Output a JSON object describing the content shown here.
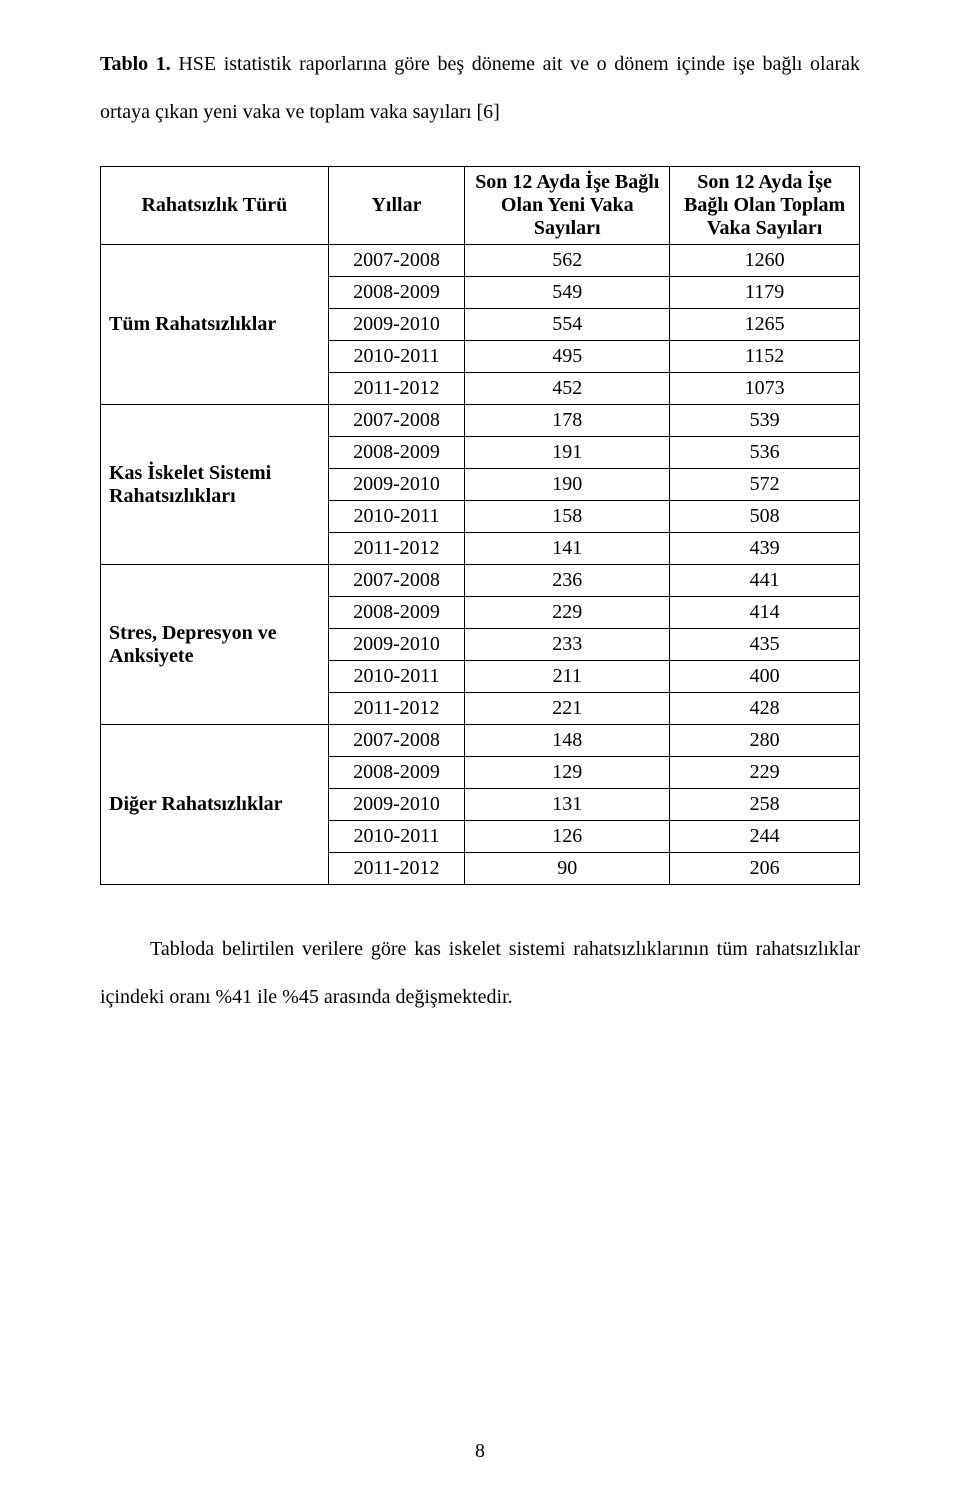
{
  "caption": {
    "label": "Tablo 1.",
    "text": " HSE istatistik raporlarına göre beş döneme ait ve o dönem içinde işe bağlı olarak ortaya çıkan yeni vaka ve toplam vaka sayıları [6]"
  },
  "table": {
    "headers": {
      "col0": "Rahatsızlık Türü",
      "col1": "Yıllar",
      "col2": "Son 12 Ayda İşe Bağlı Olan Yeni Vaka Sayıları",
      "col3": "Son 12 Ayda İşe Bağlı Olan Toplam Vaka Sayıları"
    },
    "groups": [
      {
        "name": "Tüm Rahatsızlıklar",
        "rows": [
          {
            "year": "2007-2008",
            "new": "562",
            "total": "1260"
          },
          {
            "year": "2008-2009",
            "new": "549",
            "total": "1179"
          },
          {
            "year": "2009-2010",
            "new": "554",
            "total": "1265"
          },
          {
            "year": "2010-2011",
            "new": "495",
            "total": "1152"
          },
          {
            "year": "2011-2012",
            "new": "452",
            "total": "1073"
          }
        ]
      },
      {
        "name": "Kas İskelet Sistemi Rahatsızlıkları",
        "rows": [
          {
            "year": "2007-2008",
            "new": "178",
            "total": "539"
          },
          {
            "year": "2008-2009",
            "new": "191",
            "total": "536"
          },
          {
            "year": "2009-2010",
            "new": "190",
            "total": "572"
          },
          {
            "year": "2010-2011",
            "new": "158",
            "total": "508"
          },
          {
            "year": "2011-2012",
            "new": "141",
            "total": "439"
          }
        ]
      },
      {
        "name": "Stres, Depresyon ve Anksiyete",
        "rows": [
          {
            "year": "2007-2008",
            "new": "236",
            "total": "441"
          },
          {
            "year": "2008-2009",
            "new": "229",
            "total": "414"
          },
          {
            "year": "2009-2010",
            "new": "233",
            "total": "435"
          },
          {
            "year": "2010-2011",
            "new": "211",
            "total": "400"
          },
          {
            "year": "2011-2012",
            "new": "221",
            "total": "428"
          }
        ]
      },
      {
        "name": "Diğer Rahatsızlıklar",
        "rows": [
          {
            "year": "2007-2008",
            "new": "148",
            "total": "280"
          },
          {
            "year": "2008-2009",
            "new": "129",
            "total": "229"
          },
          {
            "year": "2009-2010",
            "new": "131",
            "total": "258"
          },
          {
            "year": "2010-2011",
            "new": "126",
            "total": "244"
          },
          {
            "year": "2011-2012",
            "new": "90",
            "total": "206"
          }
        ]
      }
    ]
  },
  "body_paragraph": "Tabloda belirtilen verilere göre kas iskelet sistemi rahatsızlıklarının tüm rahatsızlıklar içindeki oranı %41 ile %45 arasında değişmektedir.",
  "page_number": "8"
}
